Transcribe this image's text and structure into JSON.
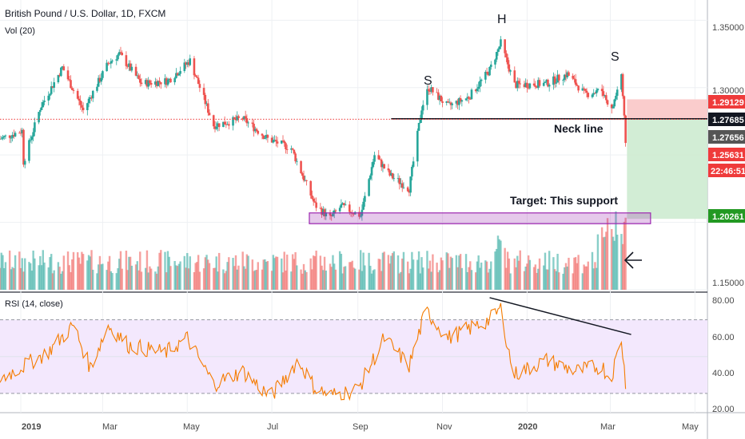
{
  "header": {
    "symbol_line": "British Pound / U.S. Dollar, 1D, FXCM",
    "volume_label": "Vol (20)",
    "rsi_label": "RSI (14, close)"
  },
  "annotations": {
    "left_shoulder": "S",
    "head": "H",
    "right_shoulder": "S",
    "neckline": "Neck line",
    "target": "Target: This support"
  },
  "price_axis": {
    "ticks": [
      "1.35000",
      "1.30000",
      "1.15000"
    ],
    "tags": {
      "stop": "1.29129",
      "entry": "1.27685",
      "last": "1.27656",
      "current": "1.25631",
      "countdown": "22:46:51",
      "target": "1.20261"
    }
  },
  "rsi_axis": {
    "ticks": [
      "80.00",
      "60.00",
      "40.00",
      "20.00"
    ]
  },
  "time_axis": {
    "labels": [
      "2019",
      "Mar",
      "May",
      "Jul",
      "Sep",
      "Nov",
      "2020",
      "Mar",
      "May"
    ]
  },
  "colors": {
    "up": "#26a69a",
    "down": "#ef5350",
    "rsi_line": "#f57c00",
    "rsi_band": "#f3e8fd",
    "target_box": "#9c27b0",
    "stop_zone": "#f9c7c7",
    "profit_zone": "#cdebd0",
    "tag_red": "#ef3b3b",
    "tag_black": "#131722",
    "tag_gray": "#555555",
    "tag_green": "#229922"
  },
  "chart_data": {
    "type": "candlestick",
    "title": "British Pound / U.S. Dollar, 1D, FXCM",
    "x_range": [
      "2018-12-17",
      "2020-05-10"
    ],
    "price_ylim": [
      1.15,
      1.365
    ],
    "price_keypoints": [
      [
        "2018-12-17",
        1.262
      ],
      [
        "2019-01-02",
        1.268
      ],
      [
        "2019-01-03",
        1.245
      ],
      [
        "2019-01-15",
        1.285
      ],
      [
        "2019-01-31",
        1.315
      ],
      [
        "2019-02-15",
        1.283
      ],
      [
        "2019-03-05",
        1.318
      ],
      [
        "2019-03-13",
        1.325
      ],
      [
        "2019-03-29",
        1.303
      ],
      [
        "2019-04-17",
        1.305
      ],
      [
        "2019-05-03",
        1.32
      ],
      [
        "2019-05-20",
        1.272
      ],
      [
        "2019-06-10",
        1.277
      ],
      [
        "2019-06-28",
        1.262
      ],
      [
        "2019-07-15",
        1.255
      ],
      [
        "2019-08-01",
        1.213
      ],
      [
        "2019-08-12",
        1.203
      ],
      [
        "2019-08-20",
        1.212
      ],
      [
        "2019-09-03",
        1.205
      ],
      [
        "2019-09-13",
        1.25
      ],
      [
        "2019-09-24",
        1.235
      ],
      [
        "2019-10-08",
        1.225
      ],
      [
        "2019-10-17",
        1.285
      ],
      [
        "2019-10-22",
        1.3
      ],
      [
        "2019-11-05",
        1.286
      ],
      [
        "2019-11-20",
        1.293
      ],
      [
        "2019-12-05",
        1.313
      ],
      [
        "2019-12-13",
        1.333
      ],
      [
        "2019-12-23",
        1.302
      ],
      [
        "2020-01-15",
        1.303
      ],
      [
        "2020-01-30",
        1.31
      ],
      [
        "2020-02-12",
        1.295
      ],
      [
        "2020-02-24",
        1.298
      ],
      [
        "2020-03-02",
        1.283
      ],
      [
        "2020-03-09",
        1.31
      ],
      [
        "2020-03-11",
        1.277
      ],
      [
        "2020-03-12",
        1.256
      ]
    ],
    "rsi": {
      "ylim": [
        20,
        85
      ],
      "overbought": 70,
      "oversold": 30,
      "keypoints": [
        [
          "2018-12-17",
          38
        ],
        [
          "2019-01-20",
          52
        ],
        [
          "2019-02-08",
          67
        ],
        [
          "2019-02-20",
          44
        ],
        [
          "2019-03-05",
          67
        ],
        [
          "2019-03-20",
          56
        ],
        [
          "2019-04-15",
          52
        ],
        [
          "2019-05-01",
          60
        ],
        [
          "2019-05-20",
          35
        ],
        [
          "2019-06-10",
          42
        ],
        [
          "2019-06-30",
          28
        ],
        [
          "2019-07-20",
          48
        ],
        [
          "2019-08-01",
          33
        ],
        [
          "2019-08-12",
          29
        ],
        [
          "2019-09-01",
          32
        ],
        [
          "2019-09-20",
          60
        ],
        [
          "2019-10-08",
          45
        ],
        [
          "2019-10-20",
          75
        ],
        [
          "2019-11-05",
          60
        ],
        [
          "2019-11-20",
          65
        ],
        [
          "2019-12-05",
          70
        ],
        [
          "2019-12-13",
          76
        ],
        [
          "2019-12-22",
          40
        ],
        [
          "2020-01-15",
          48
        ],
        [
          "2020-02-05",
          42
        ],
        [
          "2020-02-24",
          45
        ],
        [
          "2020-03-01",
          37
        ],
        [
          "2020-03-09",
          60
        ],
        [
          "2020-03-12",
          35
        ]
      ],
      "divergence_line": [
        [
          "2019-12-05",
          82
        ],
        [
          "2020-03-16",
          62
        ]
      ]
    },
    "levels": {
      "neckline": 1.27685,
      "stop": 1.29129,
      "last": 1.27656,
      "target": 1.20261,
      "target_zone": [
        1.199,
        1.207
      ]
    }
  }
}
